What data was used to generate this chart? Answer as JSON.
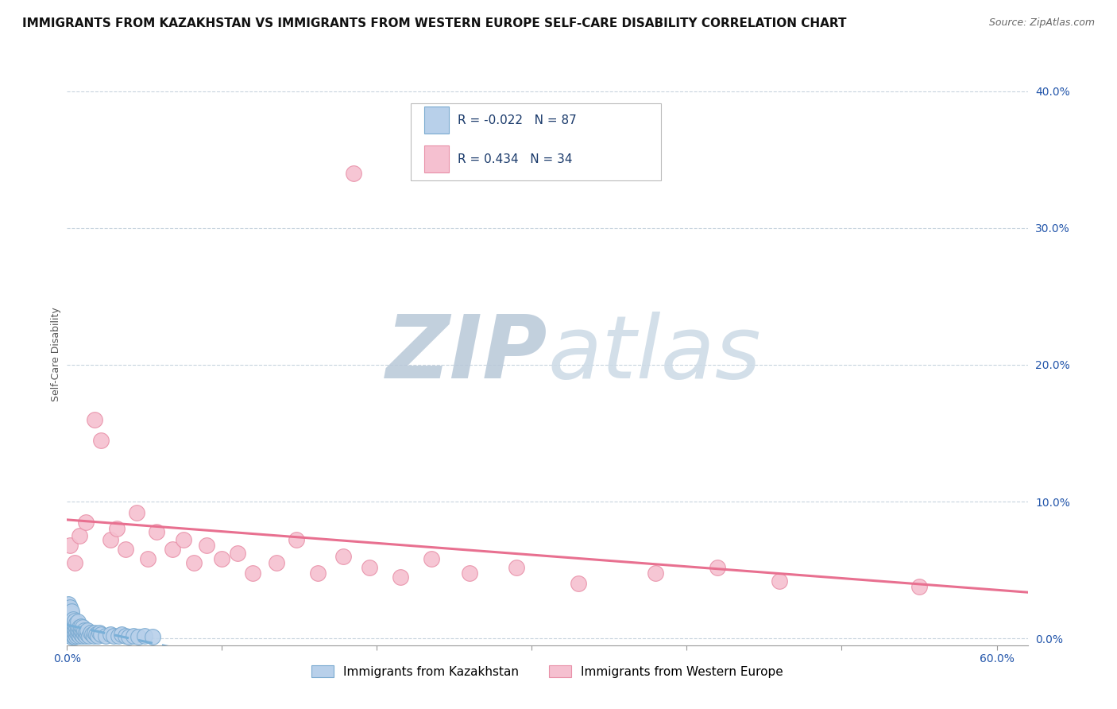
{
  "title": "IMMIGRANTS FROM KAZAKHSTAN VS IMMIGRANTS FROM WESTERN EUROPE SELF-CARE DISABILITY CORRELATION CHART",
  "source": "Source: ZipAtlas.com",
  "ylabel": "Self-Care Disability",
  "xlim": [
    0.0,
    0.62
  ],
  "ylim": [
    -0.005,
    0.42
  ],
  "xticks": [
    0.0,
    0.1,
    0.2,
    0.3,
    0.4,
    0.5,
    0.6
  ],
  "yticks_right": [
    0.0,
    0.1,
    0.2,
    0.3,
    0.4
  ],
  "ytick_labels_right": [
    "0.0%",
    "10.0%",
    "20.0%",
    "30.0%",
    "40.0%"
  ],
  "xtick_labels": [
    "0.0%",
    "",
    "",
    "",
    "",
    "",
    "60.0%"
  ],
  "grid_color": "#c8d4de",
  "background_color": "#ffffff",
  "watermark_zip_color": "#c5d5e5",
  "watermark_atlas_color": "#d5e0ea",
  "series": [
    {
      "label": "Immigrants from Kazakhstan",
      "R": -0.022,
      "N": 87,
      "color": "#b8d0ea",
      "edge_color": "#7aaad0",
      "line_color": "#7ab0d8",
      "line_style": "--",
      "x": [
        0.0,
        0.0,
        0.001,
        0.001,
        0.001,
        0.001,
        0.001,
        0.001,
        0.001,
        0.001,
        0.001,
        0.001,
        0.001,
        0.001,
        0.002,
        0.002,
        0.002,
        0.002,
        0.002,
        0.002,
        0.002,
        0.002,
        0.002,
        0.002,
        0.002,
        0.003,
        0.003,
        0.003,
        0.003,
        0.003,
        0.003,
        0.003,
        0.003,
        0.004,
        0.004,
        0.004,
        0.004,
        0.004,
        0.004,
        0.005,
        0.005,
        0.005,
        0.005,
        0.005,
        0.006,
        0.006,
        0.006,
        0.006,
        0.007,
        0.007,
        0.007,
        0.007,
        0.008,
        0.008,
        0.008,
        0.009,
        0.009,
        0.009,
        0.01,
        0.01,
        0.01,
        0.011,
        0.011,
        0.012,
        0.012,
        0.013,
        0.013,
        0.014,
        0.015,
        0.016,
        0.017,
        0.018,
        0.019,
        0.02,
        0.021,
        0.022,
        0.025,
        0.028,
        0.03,
        0.033,
        0.035,
        0.038,
        0.04,
        0.043,
        0.046,
        0.05,
        0.055
      ],
      "y": [
        0.005,
        0.008,
        0.003,
        0.006,
        0.009,
        0.012,
        0.015,
        0.018,
        0.02,
        0.022,
        0.025,
        0.004,
        0.007,
        0.01,
        0.002,
        0.005,
        0.008,
        0.011,
        0.014,
        0.017,
        0.019,
        0.021,
        0.023,
        0.003,
        0.006,
        0.001,
        0.004,
        0.007,
        0.01,
        0.013,
        0.016,
        0.018,
        0.02,
        0.002,
        0.005,
        0.008,
        0.011,
        0.014,
        0.003,
        0.001,
        0.004,
        0.007,
        0.01,
        0.013,
        0.002,
        0.005,
        0.008,
        0.011,
        0.003,
        0.006,
        0.009,
        0.012,
        0.002,
        0.005,
        0.008,
        0.003,
        0.006,
        0.009,
        0.002,
        0.005,
        0.008,
        0.003,
        0.006,
        0.002,
        0.005,
        0.003,
        0.006,
        0.002,
        0.004,
        0.003,
        0.002,
        0.004,
        0.003,
        0.002,
        0.004,
        0.003,
        0.002,
        0.003,
        0.002,
        0.002,
        0.003,
        0.002,
        0.001,
        0.002,
        0.001,
        0.002,
        0.001
      ]
    },
    {
      "label": "Immigrants from Western Europe",
      "R": 0.434,
      "N": 34,
      "color": "#f5c0d0",
      "edge_color": "#e890a8",
      "line_color": "#e87090",
      "line_style": "-",
      "x": [
        0.002,
        0.005,
        0.008,
        0.012,
        0.018,
        0.022,
        0.028,
        0.032,
        0.038,
        0.045,
        0.052,
        0.058,
        0.068,
        0.075,
        0.082,
        0.09,
        0.1,
        0.11,
        0.12,
        0.135,
        0.148,
        0.162,
        0.178,
        0.195,
        0.215,
        0.235,
        0.26,
        0.29,
        0.33,
        0.38,
        0.42,
        0.46,
        0.55,
        0.185
      ],
      "y": [
        0.068,
        0.055,
        0.075,
        0.085,
        0.16,
        0.145,
        0.072,
        0.08,
        0.065,
        0.092,
        0.058,
        0.078,
        0.065,
        0.072,
        0.055,
        0.068,
        0.058,
        0.062,
        0.048,
        0.055,
        0.072,
        0.048,
        0.06,
        0.052,
        0.045,
        0.058,
        0.048,
        0.052,
        0.04,
        0.048,
        0.052,
        0.042,
        0.038,
        0.34
      ]
    }
  ],
  "title_fontsize": 11,
  "tick_fontsize": 10,
  "legend_fontsize": 11
}
